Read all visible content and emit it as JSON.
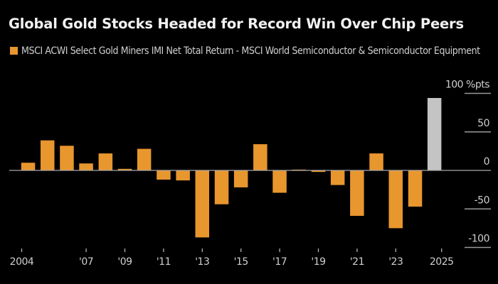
{
  "colors": {
    "background": "#000000",
    "bar_positive_hist": "#e8962e",
    "bar_current": "#c4c4c4",
    "axis": "#9a9a9a",
    "text": "#d0d0d0"
  },
  "chart_data": {
    "type": "bar",
    "title": "Global Gold Stocks Headed for Record Win Over Chip Peers",
    "legend": [
      {
        "label": "MSCI ACWI Select Gold Miners IMI Net Total Return - MSCI World Semiconductor & Semiconductor Equipment",
        "color": "#e8962e"
      }
    ],
    "legend_placement": "top-left",
    "xlabel": "",
    "ylabel": "%pts",
    "ylim": [
      -100,
      100
    ],
    "y_ticks": [
      100,
      50,
      0,
      -50,
      -100
    ],
    "y_tick_labels": [
      "100 %pts",
      "50",
      "0",
      "-50",
      "-100"
    ],
    "y_axis_side": "right",
    "grid": false,
    "categories": [
      "2004",
      "2005",
      "2006",
      "2007",
      "2008",
      "2009",
      "2010",
      "2011",
      "2012",
      "2013",
      "2014",
      "2015",
      "2016",
      "2017",
      "2018",
      "2019",
      "2020",
      "2021",
      "2022",
      "2023",
      "2024",
      "2025"
    ],
    "values": [
      10,
      39,
      32,
      9,
      22,
      2,
      28,
      -12,
      -13,
      -87,
      -44,
      -22,
      34,
      -29,
      1,
      -2,
      -19,
      -59,
      22,
      -75,
      -47,
      94
    ],
    "highlight": {
      "category": "2025",
      "color": "#c4c4c4"
    },
    "x_ticks": [
      {
        "category": "2004",
        "label": "2004"
      },
      {
        "category": "2007",
        "label": "'07"
      },
      {
        "category": "2009",
        "label": "'09"
      },
      {
        "category": "2011",
        "label": "'11"
      },
      {
        "category": "2013",
        "label": "'13"
      },
      {
        "category": "2015",
        "label": "'15"
      },
      {
        "category": "2017",
        "label": "'17"
      },
      {
        "category": "2019",
        "label": "'19"
      },
      {
        "category": "2021",
        "label": "'21"
      },
      {
        "category": "2023",
        "label": "'23"
      },
      {
        "category": "2025",
        "label": "2025"
      }
    ]
  }
}
